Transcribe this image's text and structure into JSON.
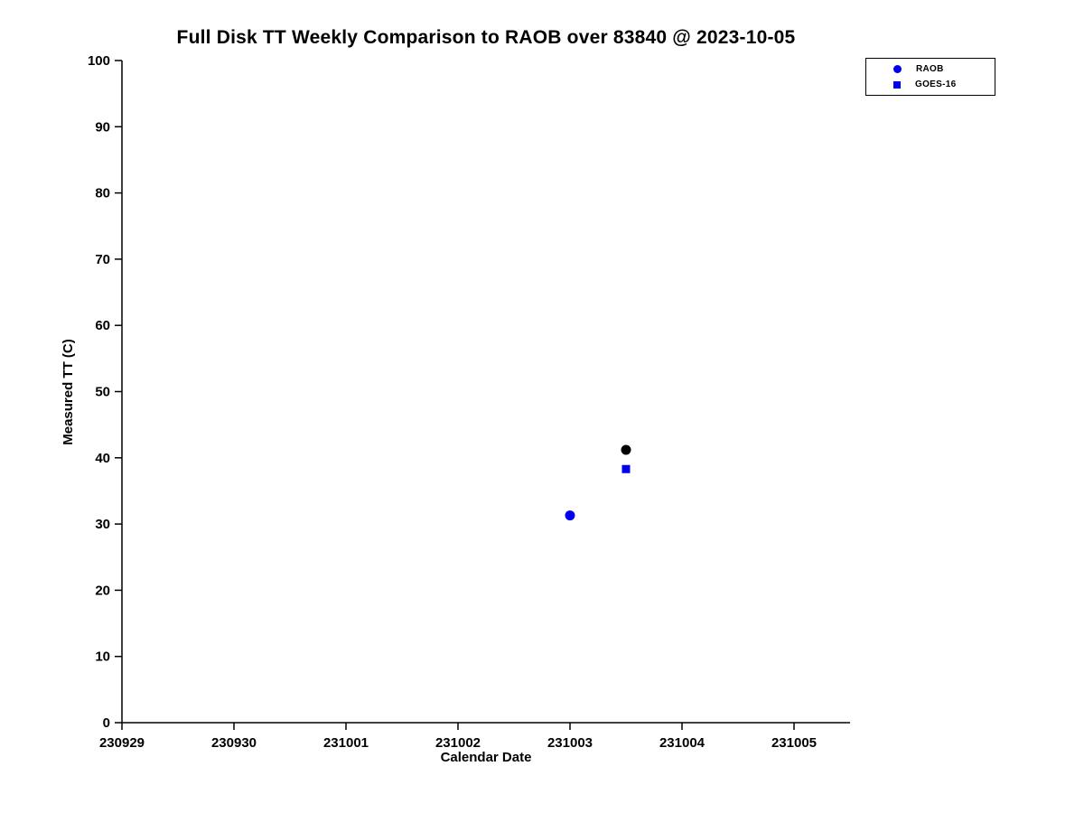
{
  "title": "Full Disk TT Weekly Comparison to RAOB over 83840 @ 2023-10-05",
  "chart_data": {
    "type": "scatter",
    "title": "Full Disk TT Weekly Comparison to RAOB over 83840 @ 2023-10-05",
    "xlabel": "Calendar Date",
    "ylabel": "Measured TT (C)",
    "x_tick_labels": [
      "230929",
      "230930",
      "231001",
      "231002",
      "231003",
      "231004",
      "231005"
    ],
    "ylim": [
      0,
      100
    ],
    "y_ticks": [
      0,
      10,
      20,
      30,
      40,
      50,
      60,
      70,
      80,
      90,
      100
    ],
    "grid": false,
    "legend_position": "top-right",
    "axis_color": "#000000",
    "legend": [
      {
        "label": "RAOB",
        "marker": "circle",
        "color": "#0000ee"
      },
      {
        "label": "GOES-16",
        "marker": "square",
        "color": "#0000ee"
      }
    ],
    "points": [
      {
        "series": "RAOB",
        "x_label": "231003",
        "x_index": 4.0,
        "y": 31.3,
        "marker": "circle",
        "color": "#0000ee"
      },
      {
        "series": "RAOB",
        "x_label": "231003.5",
        "x_index": 4.5,
        "y": 41.2,
        "marker": "circle",
        "color": "#000000"
      },
      {
        "series": "GOES-16",
        "x_label": "231003.5",
        "x_index": 4.5,
        "y": 38.3,
        "marker": "square",
        "color": "#0000ee"
      }
    ]
  }
}
